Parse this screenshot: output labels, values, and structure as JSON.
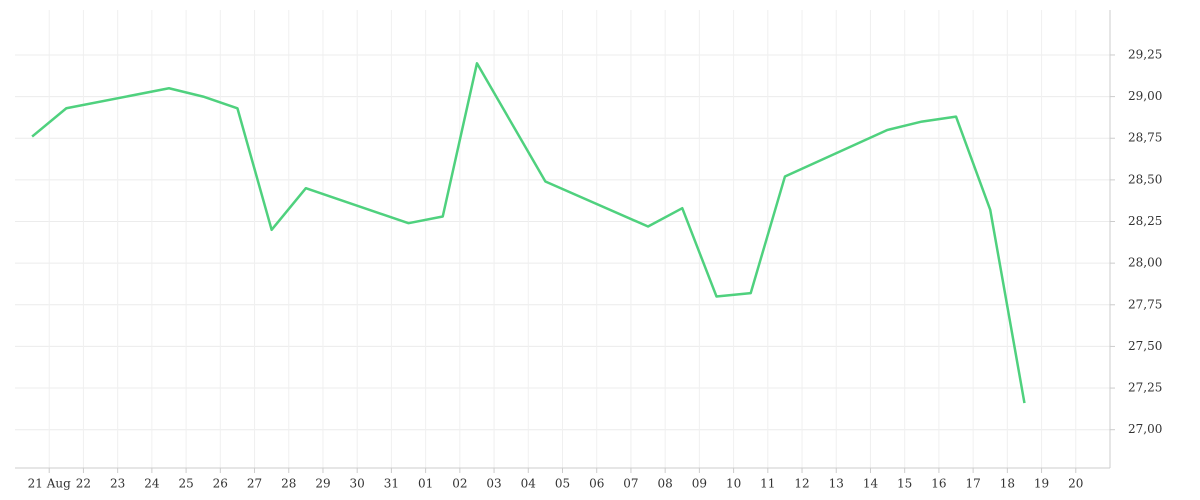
{
  "chart_data": {
    "type": "line",
    "x": [
      -0.5,
      0.5,
      3.5,
      4.5,
      5.5,
      6.5,
      7.5,
      10.5,
      11.5,
      12.5,
      14.5,
      17.5,
      18.5,
      19.5,
      20.5,
      21.5,
      24.5,
      25.5,
      26.5,
      27.5,
      28.5
    ],
    "series": [
      {
        "color": "#4fd17e",
        "values": [
          28.76,
          28.93,
          29.05,
          29.0,
          28.93,
          28.2,
          28.45,
          28.24,
          28.28,
          29.2,
          28.49,
          28.22,
          28.33,
          27.8,
          27.82,
          28.52,
          28.8,
          28.85,
          28.88,
          28.32,
          27.16
        ]
      }
    ],
    "xlim": [
      -1,
      31
    ],
    "xticks": [
      {
        "value": 0,
        "label": "21 Aug"
      },
      {
        "value": 1,
        "label": "22"
      },
      {
        "value": 2,
        "label": "23"
      },
      {
        "value": 3,
        "label": "24"
      },
      {
        "value": 4,
        "label": "25"
      },
      {
        "value": 5,
        "label": "26"
      },
      {
        "value": 6,
        "label": "27"
      },
      {
        "value": 7,
        "label": "28"
      },
      {
        "value": 8,
        "label": "29"
      },
      {
        "value": 9,
        "label": "30"
      },
      {
        "value": 10,
        "label": "31"
      },
      {
        "value": 11,
        "label": "01"
      },
      {
        "value": 12,
        "label": "02"
      },
      {
        "value": 13,
        "label": "03"
      },
      {
        "value": 14,
        "label": "04"
      },
      {
        "value": 15,
        "label": "05"
      },
      {
        "value": 16,
        "label": "06"
      },
      {
        "value": 17,
        "label": "07"
      },
      {
        "value": 18,
        "label": "08"
      },
      {
        "value": 19,
        "label": "09"
      },
      {
        "value": 20,
        "label": "10"
      },
      {
        "value": 21,
        "label": "11"
      },
      {
        "value": 22,
        "label": "12"
      },
      {
        "value": 23,
        "label": "13"
      },
      {
        "value": 24,
        "label": "14"
      },
      {
        "value": 25,
        "label": "15"
      },
      {
        "value": 26,
        "label": "16"
      },
      {
        "value": 27,
        "label": "17"
      },
      {
        "value": 28,
        "label": "18"
      },
      {
        "value": 29,
        "label": "19"
      },
      {
        "value": 30,
        "label": "20"
      }
    ],
    "ylim": [
      26.77,
      29.52
    ],
    "yticks": [
      {
        "value": 27,
        "label": "27,00"
      },
      {
        "value": 27.25,
        "label": "27,25"
      },
      {
        "value": 27.5,
        "label": "27,50"
      },
      {
        "value": 27.75,
        "label": "27,75"
      },
      {
        "value": 28,
        "label": "28,00"
      },
      {
        "value": 28.25,
        "label": "28,25"
      },
      {
        "value": 28.5,
        "label": "28,50"
      },
      {
        "value": 28.75,
        "label": "28,75"
      },
      {
        "value": 29,
        "label": "29,00"
      },
      {
        "value": 29.25,
        "label": "29,25"
      }
    ],
    "grid": true
  }
}
